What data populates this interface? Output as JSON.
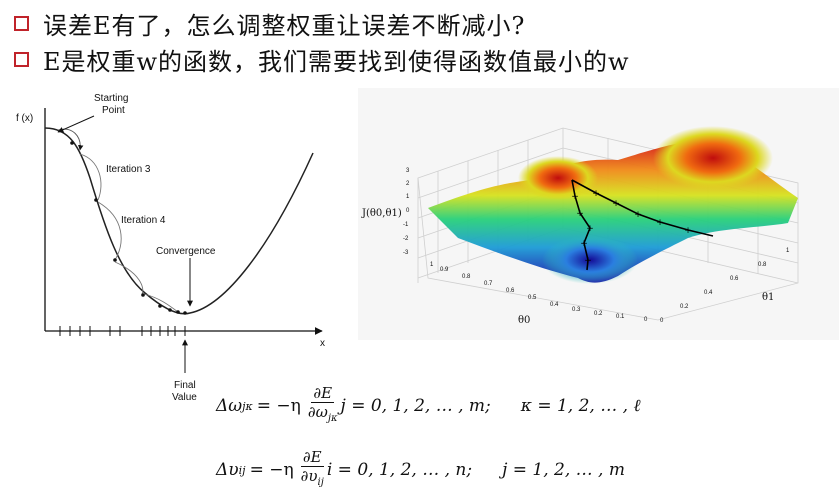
{
  "bullets": [
    {
      "text": "误差E有了，怎么调整权重让误差不断减小?"
    },
    {
      "text": "E是权重w的函数，我们需要找到使得函数值最小的w"
    }
  ],
  "gd_plot": {
    "ylabel": "f (x)",
    "xlabel": "x",
    "annotations": {
      "start_line1": "Starting",
      "start_line2": "Point",
      "iter3": "Iteration 3",
      "iter4": "Iteration 4",
      "convergence": "Convergence",
      "final_line1": "Final",
      "final_line2": "Value"
    }
  },
  "surface_plot": {
    "zlabel": "J(θ0,θ1)",
    "xlabel": "θ0",
    "ylabel": "θ1",
    "z_ticks": [
      "3",
      "2",
      "1",
      "0",
      "-1",
      "-2",
      "-3"
    ],
    "x_ticks": [
      "1",
      "0.9",
      "0.8",
      "0.7",
      "0.6",
      "0.5",
      "0.4",
      "0.3",
      "0.2",
      "0.1",
      "0"
    ],
    "y_ticks": [
      "0",
      "0.2",
      "0.4",
      "0.6",
      "0.8",
      "1"
    ]
  },
  "equations": {
    "eq1": {
      "lhs": "Δω",
      "lhs_sub": "jκ",
      "eq": "= −η",
      "num": "∂E",
      "den": "∂ω",
      "den_sub": "jκ",
      "range1": "j = 0, 1, 2, … , m;",
      "range2": "κ = 1, 2, … , ℓ"
    },
    "eq2": {
      "lhs": "Δυ",
      "lhs_sub": "ij",
      "eq": "= −η",
      "num": "∂E",
      "den": "∂υ",
      "den_sub": "ij",
      "range1": "i = 0, 1, 2, … , n;",
      "range2": "j = 1, 2, … , m"
    }
  },
  "colors": {
    "bullet_box": "#c0232a"
  }
}
